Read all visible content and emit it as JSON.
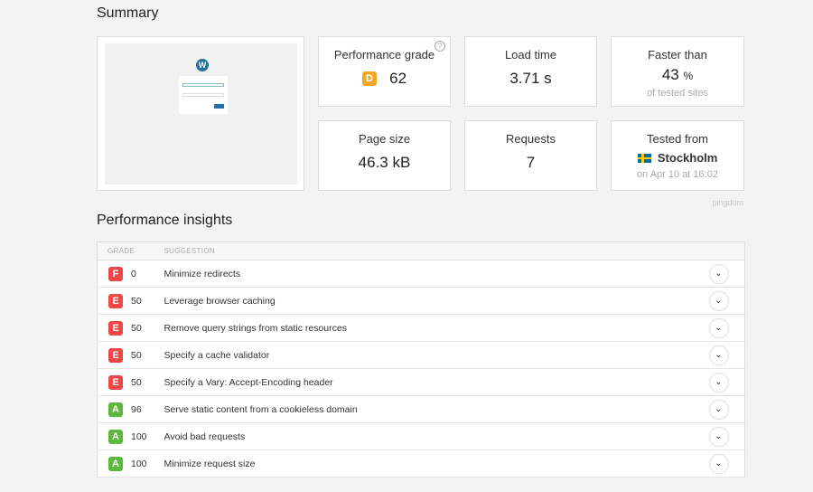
{
  "summary": {
    "title": "Summary",
    "grade": {
      "label": "Performance grade",
      "letter": "D",
      "value": "62",
      "color": "#f5a623"
    },
    "load_time": {
      "label": "Load time",
      "value": "3.71 s"
    },
    "faster_than": {
      "label": "Faster than",
      "value": "43",
      "unit": "%",
      "sub": "of tested sites"
    },
    "page_size": {
      "label": "Page size",
      "value": "46.3 kB"
    },
    "requests": {
      "label": "Requests",
      "value": "7"
    },
    "tested_from": {
      "label": "Tested from",
      "city": "Stockholm",
      "flag": "sweden-flag",
      "sub": "on Apr 10 at 16:02"
    },
    "brand": "pingdom"
  },
  "insights": {
    "title": "Performance insights",
    "headers": [
      "GRADE",
      "SUGGESTION"
    ],
    "rows": [
      {
        "letter": "F",
        "score": "0",
        "text": "Minimize redirects",
        "color": "#f04848"
      },
      {
        "letter": "E",
        "score": "50",
        "text": "Leverage browser caching",
        "color": "#f04848"
      },
      {
        "letter": "E",
        "score": "50",
        "text": "Remove query strings from static resources",
        "color": "#f04848"
      },
      {
        "letter": "E",
        "score": "50",
        "text": "Specify a cache validator",
        "color": "#f04848"
      },
      {
        "letter": "E",
        "score": "50",
        "text": "Specify a Vary: Accept-Encoding header",
        "color": "#f04848"
      },
      {
        "letter": "A",
        "score": "96",
        "text": "Serve static content from a cookieless domain",
        "color": "#5cb83c"
      },
      {
        "letter": "A",
        "score": "100",
        "text": "Avoid bad requests",
        "color": "#5cb83c"
      },
      {
        "letter": "A",
        "score": "100",
        "text": "Minimize request size",
        "color": "#5cb83c"
      }
    ]
  }
}
